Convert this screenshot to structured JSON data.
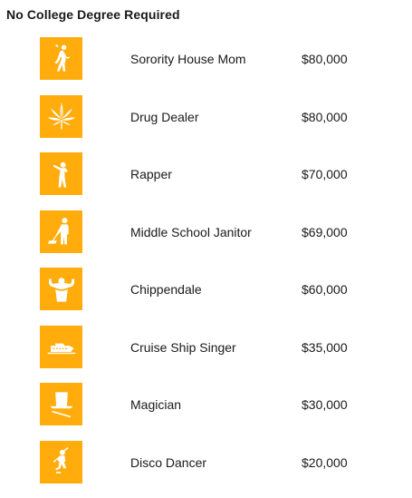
{
  "title": "No College Degree Required",
  "accent_color": "#ffac0c",
  "jobs": [
    {
      "name": "Sorority House Mom",
      "salary": "$80,000",
      "icon": "woman-silhouette-icon"
    },
    {
      "name": "Drug Dealer",
      "salary": "$80,000",
      "icon": "cannabis-leaf-icon"
    },
    {
      "name": "Rapper",
      "salary": "$70,000",
      "icon": "rapper-microphone-icon"
    },
    {
      "name": "Middle School Janitor",
      "salary": "$69,000",
      "icon": "janitor-broom-icon"
    },
    {
      "name": "Chippendale",
      "salary": "$60,000",
      "icon": "flexing-man-icon"
    },
    {
      "name": "Cruise Ship Singer",
      "salary": "$35,000",
      "icon": "cruise-ship-icon"
    },
    {
      "name": "Magician",
      "salary": "$30,000",
      "icon": "top-hat-wand-icon"
    },
    {
      "name": "Disco Dancer",
      "salary": "$20,000",
      "icon": "disco-dancer-icon"
    }
  ]
}
